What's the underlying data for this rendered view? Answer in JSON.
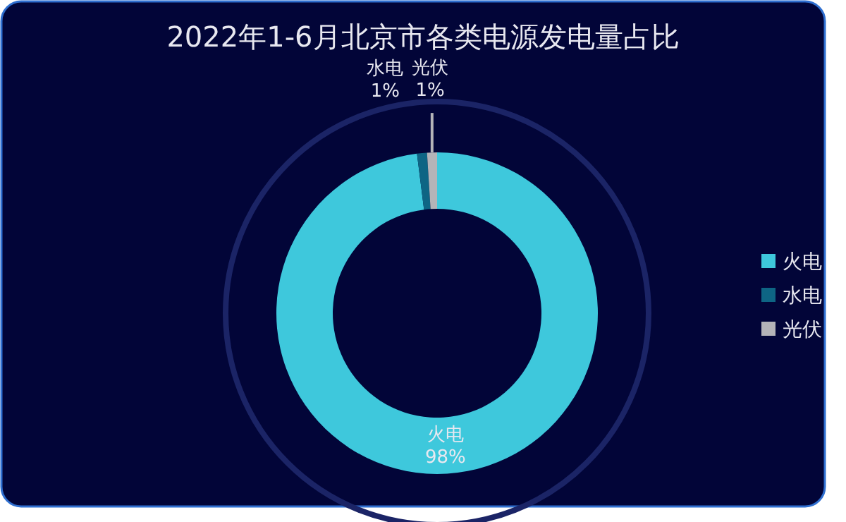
{
  "chart_data": {
    "type": "donut",
    "title": "2022年1-6月北京市各类电源发电量占比",
    "categories": [
      "火电",
      "水电",
      "光伏"
    ],
    "values": [
      98,
      1,
      1
    ],
    "colors": [
      "#3ec8dc",
      "#0e6584",
      "#b4b4b8"
    ],
    "value_labels": [
      "98%",
      "1%",
      "1%"
    ],
    "legend": "right"
  }
}
